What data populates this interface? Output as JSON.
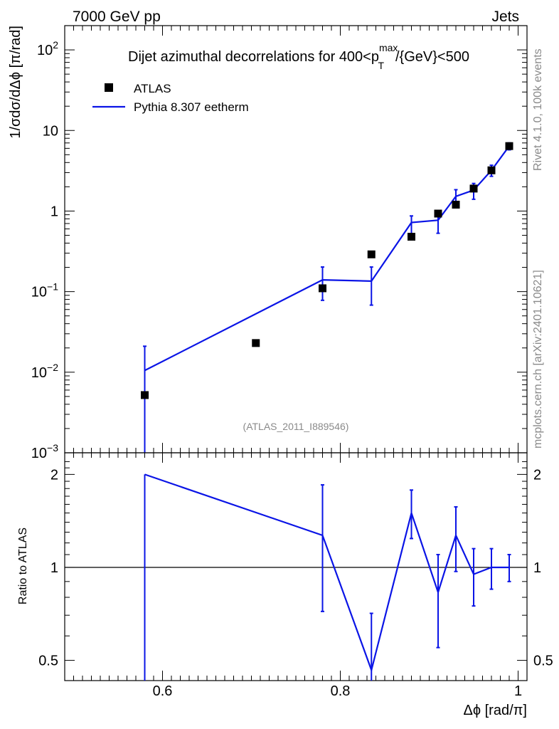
{
  "header": {
    "energy_label": "7000 GeV pp",
    "category_label": "Jets"
  },
  "side_labels": {
    "rivet": "Rivet 4.1.0,  100k events",
    "mcplots": "mcplots.cern.ch [arXiv:2401.10621]"
  },
  "colors": {
    "data": "#000000",
    "mc": "#0a14e6",
    "watermark": "#8a8a8a"
  },
  "chart_data": [
    {
      "type": "scatter",
      "panel": "main",
      "title": {
        "pre": "Dijet azimuthal decorrelations for 400<p",
        "sup": "max",
        "sub": "T",
        "post": "/{GeV}<500"
      },
      "xlabel": "",
      "ylabel": "1/σdσ/dΔϕ [π/rad]",
      "yscale": "log",
      "xlim": [
        0.49,
        1.01
      ],
      "ylim": [
        0.001,
        200
      ],
      "yticks": [
        {
          "value": 100,
          "base": "10",
          "exp": "2"
        },
        {
          "value": 10,
          "base": "10",
          "exp": ""
        },
        {
          "value": 1,
          "base": "1",
          "exp": ""
        },
        {
          "value": 0.1,
          "base": "10",
          "exp": "−1"
        },
        {
          "value": 0.01,
          "base": "10",
          "exp": "−2"
        },
        {
          "value": 0.001,
          "base": "10",
          "exp": "−3"
        }
      ],
      "legend": {
        "position": "top-left",
        "entries": [
          {
            "name": "ATLAS",
            "kind": "marker"
          },
          {
            "name": "Pythia 8.307 eetherm",
            "kind": "line"
          }
        ]
      },
      "watermark": "(ATLAS_2011_I889546)",
      "series": [
        {
          "name": "ATLAS",
          "x": [
            0.58,
            0.705,
            0.78,
            0.835,
            0.88,
            0.91,
            0.93,
            0.95,
            0.97,
            0.99
          ],
          "y": [
            0.0052,
            0.023,
            0.11,
            0.29,
            0.48,
            0.93,
            1.2,
            1.9,
            3.2,
            6.4
          ]
        },
        {
          "name": "Pythia 8.307 eetherm",
          "x": [
            0.58,
            0.78,
            0.835,
            0.88,
            0.91,
            0.93,
            0.95,
            0.97,
            0.99
          ],
          "y": [
            0.0105,
            0.14,
            0.135,
            0.72,
            0.77,
            1.52,
            1.82,
            3.2,
            6.4
          ],
          "yerr_low": [
            0.0105,
            0.062,
            0.067,
            0.23,
            0.24,
            0.36,
            0.42,
            0.5,
            0.65
          ],
          "yerr_high": [
            0.0105,
            0.062,
            0.067,
            0.15,
            0.22,
            0.32,
            0.38,
            0.5,
            0.6
          ]
        }
      ]
    },
    {
      "type": "line",
      "panel": "ratio",
      "xlabel": "Δϕ [rad/π]",
      "ylabel": "Ratio to ATLAS",
      "yscale": "log",
      "xlim": [
        0.49,
        1.01
      ],
      "ylim": [
        0.43,
        2.35
      ],
      "reference_line": 1,
      "xticks": [
        {
          "value": 0.6,
          "label": "0.6"
        },
        {
          "value": 0.8,
          "label": "0.8"
        },
        {
          "value": 1.0,
          "label": "1"
        }
      ],
      "yticks": [
        {
          "value": 2,
          "label": "2"
        },
        {
          "value": 1,
          "label": "1"
        },
        {
          "value": 0.5,
          "label": "0.5"
        }
      ],
      "series": [
        {
          "name": "Pythia 8.307 eetherm",
          "x": [
            0.58,
            0.78,
            0.835,
            0.88,
            0.91,
            0.93,
            0.95,
            0.97,
            0.99
          ],
          "y": [
            2.0,
            1.27,
            0.465,
            1.5,
            0.83,
            1.27,
            0.95,
            1.0,
            1.0
          ],
          "yerr_low": [
            1.7,
            0.55,
            0.035,
            0.26,
            0.28,
            0.3,
            0.2,
            0.15,
            0.1
          ],
          "yerr_high": [
            0.0,
            0.58,
            0.245,
            0.28,
            0.27,
            0.3,
            0.2,
            0.15,
            0.1
          ]
        }
      ]
    }
  ]
}
